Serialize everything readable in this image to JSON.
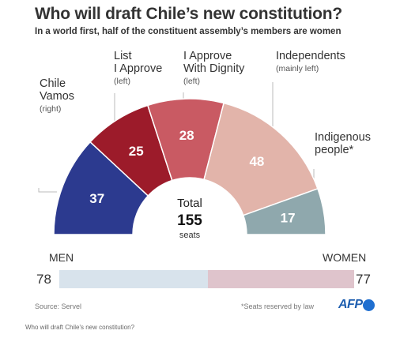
{
  "title": "Who will draft Chile’s new constitution?",
  "subtitle": "In a world first, half of the constituent assembly’s members are women",
  "chart_data": [
    {
      "type": "pie",
      "variant": "half-donut",
      "categories": [
        "Chile Vamos",
        "List I Approve",
        "I Approve With Dignity",
        "Independents",
        "Indigenous people*"
      ],
      "category_lines": [
        [
          "Chile",
          "Vamos"
        ],
        [
          "List",
          "I Approve"
        ],
        [
          "I Approve",
          "With Dignity"
        ],
        [
          "Independents"
        ],
        [
          "Indigenous",
          "people*"
        ]
      ],
      "notes": [
        "(right)",
        "(left)",
        "(left)",
        "(mainly left)",
        ""
      ],
      "values": [
        37,
        25,
        28,
        48,
        17
      ],
      "colors": [
        "#2c3a8f",
        "#9c1b2a",
        "#c95a63",
        "#e2b4aa",
        "#8fa8ad"
      ],
      "value_text_colors": [
        "#ffffff",
        "#ffffff",
        "#ffffff",
        "#ffffff",
        "#ffffff"
      ],
      "center": {
        "label": "Total",
        "value": "155",
        "unit": "seats"
      }
    },
    {
      "type": "bar",
      "orientation": "horizontal-stacked",
      "categories": [
        "MEN",
        "WOMEN"
      ],
      "values": [
        78,
        77
      ],
      "colors": [
        "#d8e3ec",
        "#dfc4cc"
      ]
    }
  ],
  "source": "Source: Servel",
  "footnote": "*Seats reserved by law",
  "logo": "AFP",
  "caption": "Who will draft Chile's new constitution?"
}
